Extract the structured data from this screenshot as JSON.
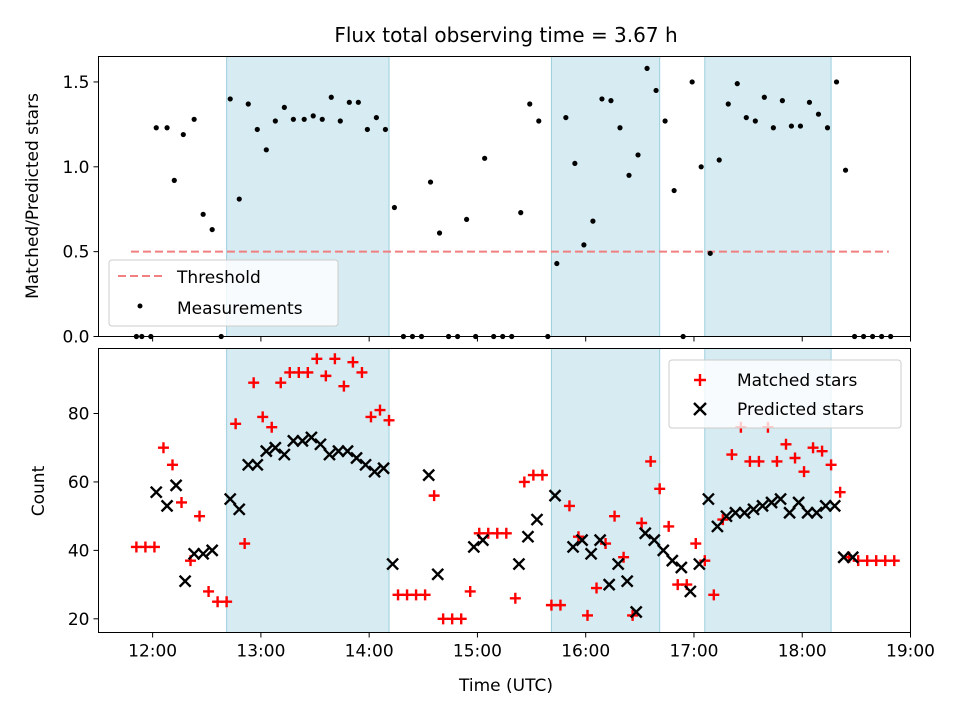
{
  "chart_data": [
    {
      "type": "scatter",
      "title": "Flux total observing time = 3.67 h",
      "ylabel": "Matched/Predicted stars",
      "xlim": [
        "11:30",
        "19:00"
      ],
      "ylim": [
        0,
        1.65
      ],
      "yticks": [
        "0.0",
        "0.5",
        "1.0",
        "1.5"
      ],
      "grid": false,
      "legend_position": "lower-left",
      "highlight_intervals": [
        [
          "12:41",
          "14:11"
        ],
        [
          "15:41",
          "16:41"
        ],
        [
          "17:06",
          "18:16"
        ]
      ],
      "threshold": {
        "name": "Threshold",
        "y": 0.5,
        "x_range": [
          "11:48",
          "18:48"
        ],
        "color": "#f08080"
      },
      "series": [
        {
          "name": "Measurements",
          "color": "#000000",
          "points": [
            [
              "11:51",
              0
            ],
            [
              "11:54",
              0
            ],
            [
              "11:59",
              0
            ],
            [
              "12:02",
              1.23
            ],
            [
              "12:08",
              1.23
            ],
            [
              "12:12",
              0.92
            ],
            [
              "12:17",
              1.19
            ],
            [
              "12:23",
              1.28
            ],
            [
              "12:28",
              0.72
            ],
            [
              "12:33",
              0.63
            ],
            [
              "12:38",
              0
            ],
            [
              "12:43",
              1.4
            ],
            [
              "12:48",
              0.81
            ],
            [
              "12:53",
              1.37
            ],
            [
              "12:58",
              1.22
            ],
            [
              "13:03",
              1.1
            ],
            [
              "13:08",
              1.27
            ],
            [
              "13:13",
              1.35
            ],
            [
              "13:18",
              1.28
            ],
            [
              "13:24",
              1.28
            ],
            [
              "13:29",
              1.3
            ],
            [
              "13:34",
              1.28
            ],
            [
              "13:39",
              1.41
            ],
            [
              "13:44",
              1.27
            ],
            [
              "13:49",
              1.38
            ],
            [
              "13:54",
              1.38
            ],
            [
              "13:59",
              1.22
            ],
            [
              "14:04",
              1.29
            ],
            [
              "14:09",
              1.22
            ],
            [
              "14:14",
              0.76
            ],
            [
              "14:19",
              0
            ],
            [
              "14:24",
              0
            ],
            [
              "14:29",
              0
            ],
            [
              "14:34",
              0.91
            ],
            [
              "14:39",
              0.61
            ],
            [
              "14:44",
              0
            ],
            [
              "14:49",
              0
            ],
            [
              "14:54",
              0.69
            ],
            [
              "14:59",
              0
            ],
            [
              "15:04",
              1.05
            ],
            [
              "15:09",
              0
            ],
            [
              "15:14",
              0
            ],
            [
              "15:19",
              0
            ],
            [
              "15:24",
              0.73
            ],
            [
              "15:29",
              1.37
            ],
            [
              "15:34",
              1.27
            ],
            [
              "15:39",
              0
            ],
            [
              "15:44",
              0.43
            ],
            [
              "15:49",
              1.29
            ],
            [
              "15:54",
              1.02
            ],
            [
              "15:59",
              0.54
            ],
            [
              "16:04",
              0.68
            ],
            [
              "16:09",
              1.4
            ],
            [
              "16:14",
              1.39
            ],
            [
              "16:19",
              1.23
            ],
            [
              "16:24",
              0.95
            ],
            [
              "16:29",
              1.07
            ],
            [
              "16:34",
              1.58
            ],
            [
              "16:39",
              1.45
            ],
            [
              "16:44",
              1.27
            ],
            [
              "16:49",
              0.86
            ],
            [
              "16:54",
              0
            ],
            [
              "16:59",
              1.5
            ],
            [
              "17:04",
              1.0
            ],
            [
              "17:09",
              0.49
            ],
            [
              "17:14",
              1.04
            ],
            [
              "17:19",
              1.37
            ],
            [
              "17:24",
              1.49
            ],
            [
              "17:29",
              1.29
            ],
            [
              "17:34",
              1.27
            ],
            [
              "17:39",
              1.41
            ],
            [
              "17:44",
              1.23
            ],
            [
              "17:49",
              1.39
            ],
            [
              "17:54",
              1.24
            ],
            [
              "17:59",
              1.24
            ],
            [
              "18:04",
              1.38
            ],
            [
              "18:09",
              1.31
            ],
            [
              "18:14",
              1.23
            ],
            [
              "18:19",
              1.5
            ],
            [
              "18:24",
              0.98
            ],
            [
              "18:29",
              0
            ],
            [
              "18:34",
              0
            ],
            [
              "18:39",
              0
            ],
            [
              "18:44",
              0
            ],
            [
              "18:49",
              0
            ]
          ]
        }
      ]
    },
    {
      "type": "scatter",
      "xlabel": "Time (UTC)",
      "ylabel": "Count",
      "xticks": [
        "12:00",
        "13:00",
        "14:00",
        "15:00",
        "16:00",
        "17:00",
        "18:00",
        "19:00"
      ],
      "xlim": [
        "11:30",
        "19:00"
      ],
      "ylim": [
        16,
        99
      ],
      "yticks": [
        "20",
        "40",
        "60",
        "80"
      ],
      "grid": false,
      "legend_position": "top-right",
      "highlight_intervals": [
        [
          "12:41",
          "14:11"
        ],
        [
          "15:41",
          "16:41"
        ],
        [
          "17:06",
          "18:16"
        ]
      ],
      "series": [
        {
          "name": "Matched stars",
          "marker": "plus",
          "color": "#ff0000",
          "points": [
            [
              "11:51",
              41
            ],
            [
              "11:56",
              41
            ],
            [
              "12:01",
              41
            ],
            [
              "12:06",
              70
            ],
            [
              "12:11",
              65
            ],
            [
              "12:16",
              54
            ],
            [
              "12:21",
              37
            ],
            [
              "12:26",
              50
            ],
            [
              "12:31",
              28
            ],
            [
              "12:36",
              25
            ],
            [
              "12:41",
              25
            ],
            [
              "12:46",
              77
            ],
            [
              "12:51",
              42
            ],
            [
              "12:56",
              89
            ],
            [
              "13:01",
              79
            ],
            [
              "13:06",
              76
            ],
            [
              "13:11",
              89
            ],
            [
              "13:16",
              92
            ],
            [
              "13:21",
              92
            ],
            [
              "13:26",
              92
            ],
            [
              "13:31",
              96
            ],
            [
              "13:36",
              91
            ],
            [
              "13:41",
              96
            ],
            [
              "13:46",
              88
            ],
            [
              "13:51",
              95
            ],
            [
              "13:56",
              92
            ],
            [
              "14:01",
              79
            ],
            [
              "14:06",
              81
            ],
            [
              "14:11",
              78
            ],
            [
              "14:16",
              27
            ],
            [
              "14:21",
              27
            ],
            [
              "14:26",
              27
            ],
            [
              "14:31",
              27
            ],
            [
              "14:36",
              56
            ],
            [
              "14:41",
              20
            ],
            [
              "14:46",
              20
            ],
            [
              "14:51",
              20
            ],
            [
              "14:56",
              28
            ],
            [
              "15:01",
              45
            ],
            [
              "15:06",
              45
            ],
            [
              "15:11",
              45
            ],
            [
              "15:16",
              45
            ],
            [
              "15:21",
              26
            ],
            [
              "15:26",
              60
            ],
            [
              "15:31",
              62
            ],
            [
              "15:36",
              62
            ],
            [
              "15:41",
              24
            ],
            [
              "15:46",
              24
            ],
            [
              "15:51",
              53
            ],
            [
              "15:56",
              44
            ],
            [
              "16:01",
              21
            ],
            [
              "16:06",
              29
            ],
            [
              "16:11",
              42
            ],
            [
              "16:16",
              50
            ],
            [
              "16:21",
              38
            ],
            [
              "16:26",
              21
            ],
            [
              "16:31",
              48
            ],
            [
              "16:36",
              66
            ],
            [
              "16:41",
              58
            ],
            [
              "16:46",
              47
            ],
            [
              "16:51",
              30
            ],
            [
              "16:56",
              30
            ],
            [
              "17:01",
              42
            ],
            [
              "17:06",
              37
            ],
            [
              "17:11",
              27
            ],
            [
              "17:16",
              49
            ],
            [
              "17:21",
              68
            ],
            [
              "17:26",
              76
            ],
            [
              "17:31",
              66
            ],
            [
              "17:36",
              66
            ],
            [
              "17:41",
              76
            ],
            [
              "17:46",
              66
            ],
            [
              "17:51",
              71
            ],
            [
              "17:56",
              67
            ],
            [
              "18:01",
              63
            ],
            [
              "18:06",
              70
            ],
            [
              "18:11",
              69
            ],
            [
              "18:16",
              65
            ],
            [
              "18:21",
              57
            ],
            [
              "18:26",
              38
            ],
            [
              "18:31",
              37
            ],
            [
              "18:36",
              37
            ],
            [
              "18:41",
              37
            ],
            [
              "18:46",
              37
            ],
            [
              "18:51",
              37
            ]
          ]
        },
        {
          "name": "Predicted stars",
          "marker": "x",
          "color": "#000000",
          "points": [
            [
              "12:02",
              57
            ],
            [
              "12:08",
              53
            ],
            [
              "12:13",
              59
            ],
            [
              "12:18",
              31
            ],
            [
              "12:23",
              39
            ],
            [
              "12:28",
              39
            ],
            [
              "12:33",
              40
            ],
            [
              "12:43",
              55
            ],
            [
              "12:48",
              52
            ],
            [
              "12:53",
              65
            ],
            [
              "12:58",
              65
            ],
            [
              "13:03",
              69
            ],
            [
              "13:08",
              70
            ],
            [
              "13:13",
              68
            ],
            [
              "13:18",
              72
            ],
            [
              "13:23",
              72
            ],
            [
              "13:28",
              73
            ],
            [
              "13:33",
              71
            ],
            [
              "13:38",
              68
            ],
            [
              "13:43",
              69
            ],
            [
              "13:48",
              69
            ],
            [
              "13:53",
              67
            ],
            [
              "13:58",
              65
            ],
            [
              "14:03",
              63
            ],
            [
              "14:08",
              64
            ],
            [
              "14:13",
              36
            ],
            [
              "14:33",
              62
            ],
            [
              "14:38",
              33
            ],
            [
              "14:58",
              41
            ],
            [
              "15:03",
              43
            ],
            [
              "15:23",
              36
            ],
            [
              "15:28",
              44
            ],
            [
              "15:33",
              49
            ],
            [
              "15:43",
              56
            ],
            [
              "15:53",
              41
            ],
            [
              "15:58",
              43
            ],
            [
              "16:03",
              39
            ],
            [
              "16:08",
              43
            ],
            [
              "16:13",
              30
            ],
            [
              "16:18",
              36
            ],
            [
              "16:23",
              31
            ],
            [
              "16:28",
              22
            ],
            [
              "16:33",
              45
            ],
            [
              "16:38",
              43
            ],
            [
              "16:43",
              40
            ],
            [
              "16:48",
              37
            ],
            [
              "16:53",
              35
            ],
            [
              "16:58",
              28
            ],
            [
              "17:03",
              36
            ],
            [
              "17:08",
              55
            ],
            [
              "17:13",
              47
            ],
            [
              "17:18",
              50
            ],
            [
              "17:23",
              51
            ],
            [
              "17:28",
              51
            ],
            [
              "17:33",
              52
            ],
            [
              "17:38",
              53
            ],
            [
              "17:43",
              54
            ],
            [
              "17:48",
              55
            ],
            [
              "17:53",
              51
            ],
            [
              "17:58",
              54
            ],
            [
              "18:03",
              51
            ],
            [
              "18:08",
              51
            ],
            [
              "18:13",
              53
            ],
            [
              "18:18",
              53
            ],
            [
              "18:23",
              38
            ],
            [
              "18:28",
              38
            ]
          ]
        }
      ]
    }
  ]
}
